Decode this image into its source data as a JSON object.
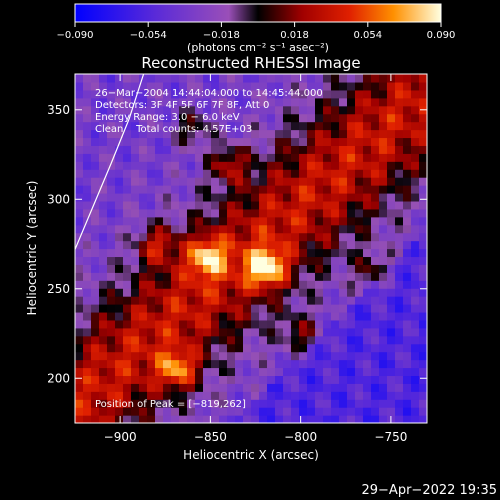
{
  "chart_data": {
    "type": "heatmap",
    "title": "Reconstructed RHESSI Image",
    "xlabel": "Heliocentric X (arcsec)",
    "ylabel": "Heliocentric Y (arcsec)",
    "xlim": [
      -925,
      -730
    ],
    "ylim": [
      175,
      370
    ],
    "x_ticks": [
      -900,
      -850,
      -800,
      -750
    ],
    "y_ticks": [
      200,
      250,
      300,
      350
    ],
    "x_tick_labels": [
      "−900",
      "−850",
      "−800",
      "−750"
    ],
    "y_tick_labels": [
      "200",
      "250",
      "300",
      "350"
    ],
    "colorbar": {
      "range": [
        -0.09,
        0.09
      ],
      "ticks": [
        -0.09,
        -0.054,
        -0.018,
        0.018,
        0.054,
        0.09
      ],
      "tick_labels": [
        "−0.090",
        "−0.054",
        "−0.018",
        "0.018",
        "0.054",
        "0.090"
      ],
      "units": "(photons cm⁻² s⁻¹ asec⁻²)"
    },
    "annotations": [
      "26−Mar−2004 14:44:04.000 to 14:45:44.000",
      "Detectors: 3F 4F 5F 6F 7F 8F, Att 0",
      "Energy Range: 3.0 − 6.0 keV",
      "Clean    Total counts: 4.57E+03"
    ],
    "peak_label": "Position of Peak = [−819,262]",
    "peaks": [
      {
        "x": -819,
        "y": 262,
        "value": 0.09
      },
      {
        "x": -852,
        "y": 268,
        "value": 0.075
      },
      {
        "x": -868,
        "y": 205,
        "value": 0.07
      },
      {
        "x": -840,
        "y": 320,
        "value": 0.055
      },
      {
        "x": -880,
        "y": 275,
        "value": 0.055
      },
      {
        "x": -800,
        "y": 225,
        "value": 0.045
      },
      {
        "x": -760,
        "y": 260,
        "value": 0.04
      },
      {
        "x": -860,
        "y": 340,
        "value": 0.045
      }
    ],
    "limb_arc": [
      [
        -925,
        272
      ],
      [
        -905,
        320
      ],
      [
        -895,
        345
      ],
      [
        -887,
        370
      ]
    ],
    "grid": false
  },
  "footer": {
    "timestamp": "29−Apr−2022 19:35"
  }
}
